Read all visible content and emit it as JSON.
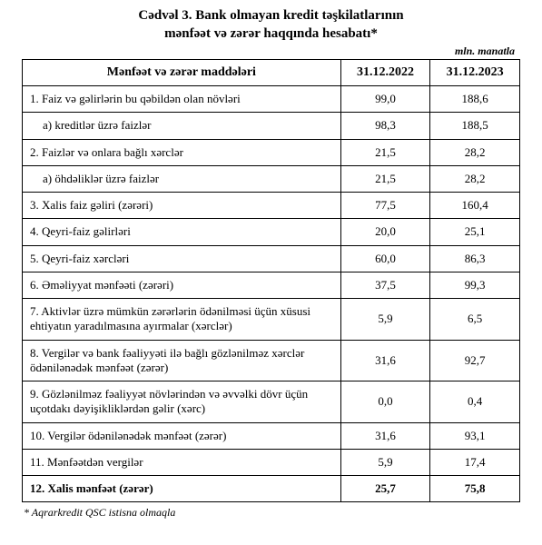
{
  "title_line1": "Cədvəl 3. Bank olmayan kredit təşkilatlarının",
  "title_line2": "mənfəət və zərər haqqında hesabatı*",
  "unit_label": "mln. manatla",
  "columns": {
    "label": "Mənfəət və zərər maddələri",
    "col1": "31.12.2022",
    "col2": "31.12.2023"
  },
  "rows": [
    {
      "label": "1. Faiz və gəlirlərin bu qəbildən olan növləri",
      "v1": "99,0",
      "v2": "188,6",
      "indent": false,
      "bold": false
    },
    {
      "label": "a) kreditlər üzrə faizlər",
      "v1": "98,3",
      "v2": "188,5",
      "indent": true,
      "bold": false
    },
    {
      "label": "2. Faizlər və onlara bağlı xərclər",
      "v1": "21,5",
      "v2": "28,2",
      "indent": false,
      "bold": false
    },
    {
      "label": "a) öhdəliklər üzrə faizlər",
      "v1": "21,5",
      "v2": "28,2",
      "indent": true,
      "bold": false
    },
    {
      "label": "3. Xalis faiz gəliri (zərəri)",
      "v1": "77,5",
      "v2": "160,4",
      "indent": false,
      "bold": false
    },
    {
      "label": "4. Qeyri-faiz gəlirləri",
      "v1": "20,0",
      "v2": "25,1",
      "indent": false,
      "bold": false
    },
    {
      "label": "5. Qeyri-faiz xərcləri",
      "v1": "60,0",
      "v2": "86,3",
      "indent": false,
      "bold": false
    },
    {
      "label": "6. Əməliyyat mənfəəti (zərəri)",
      "v1": "37,5",
      "v2": "99,3",
      "indent": false,
      "bold": false
    },
    {
      "label": "7. Aktivlər üzrə mümkün zərərlərin ödənilməsi üçün xüsusi ehtiyatın yaradılmasına ayırmalar (xərclər)",
      "v1": "5,9",
      "v2": "6,5",
      "indent": false,
      "bold": false
    },
    {
      "label": "8. Vergilər və bank fəaliyyəti ilə bağlı gözlənilməz xərclər ödənilənədək mənfəət (zərər)",
      "v1": "31,6",
      "v2": "92,7",
      "indent": false,
      "bold": false
    },
    {
      "label": "9. Gözlənilməz fəaliyyət növlərindən və əvvəlki dövr üçün uçotdakı dəyişikliklərdən gəlir (xərc)",
      "v1": "0,0",
      "v2": "0,4",
      "indent": false,
      "bold": false
    },
    {
      "label": "10. Vergilər ödənilənədək mənfəət (zərər)",
      "v1": "31,6",
      "v2": "93,1",
      "indent": false,
      "bold": false
    },
    {
      "label": "11. Mənfəətdən vergilər",
      "v1": "5,9",
      "v2": "17,4",
      "indent": false,
      "bold": false
    },
    {
      "label": "12. Xalis mənfəət (zərər)",
      "v1": "25,7",
      "v2": "75,8",
      "indent": false,
      "bold": true
    }
  ],
  "footnote": "* Aqrarkredit QSC istisna olmaqla"
}
